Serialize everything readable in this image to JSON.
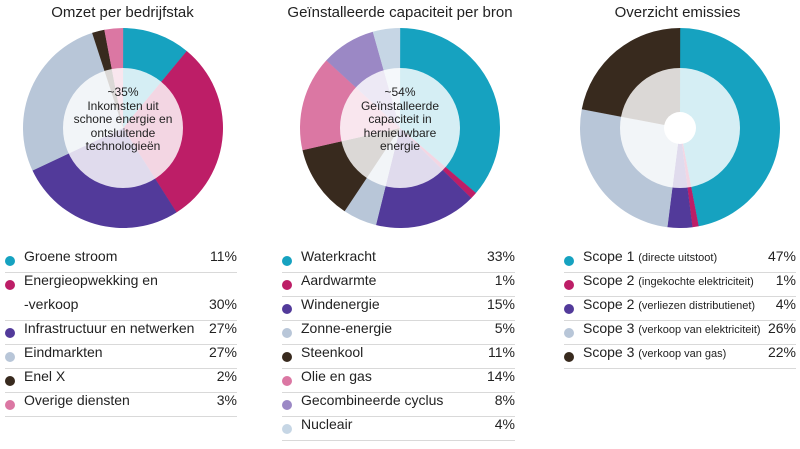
{
  "colors": {
    "teal": "#16a2c0",
    "magenta": "#bd1e67",
    "purple": "#523a9a",
    "lightblue": "#b8c6d8",
    "darkbrown": "#382a1e",
    "pink": "#db77a3",
    "lavender": "#9b88c5",
    "paleblue": "#c6d6e5"
  },
  "chart_data": [
    {
      "type": "pie",
      "variant": "donut",
      "title": "Omzet per bedrijfstak",
      "center_label": [
        "~35%",
        "Inkomsten uit",
        "schone energie en",
        "ontsluitende",
        "technologieën"
      ],
      "slices": [
        {
          "label": "Groene stroom",
          "value": 11,
          "display": "11%",
          "color": "#16a2c0"
        },
        {
          "label": "Energieopwekking en -verkoop",
          "label_lines": [
            "Energieopwekking en",
            "-verkoop"
          ],
          "value": 30,
          "display": "30%",
          "color": "#bd1e67"
        },
        {
          "label": "Infrastructuur en netwerken",
          "value": 27,
          "display": "27%",
          "color": "#523a9a"
        },
        {
          "label": "Eindmarkten",
          "value": 27,
          "display": "27%",
          "color": "#b8c6d8"
        },
        {
          "label": "Enel X",
          "value": 2,
          "display": "2%",
          "color": "#382a1e"
        },
        {
          "label": "Overige diensten",
          "value": 3,
          "display": "3%",
          "color": "#db77a3"
        }
      ]
    },
    {
      "type": "pie",
      "variant": "donut",
      "title": "Geïnstalleerde capaciteit per bron",
      "center_label": [
        "~54%",
        "Geïnstalleerde",
        "capaciteit in",
        "hernieuwbare",
        "energie"
      ],
      "slices": [
        {
          "label": "Waterkracht",
          "value": 33,
          "display": "33%",
          "color": "#16a2c0"
        },
        {
          "label": "Aardwarmte",
          "value": 1,
          "display": "1%",
          "color": "#bd1e67"
        },
        {
          "label": "Windenergie",
          "value": 15,
          "display": "15%",
          "color": "#523a9a"
        },
        {
          "label": "Zonne-energie",
          "value": 5,
          "display": "5%",
          "color": "#b8c6d8"
        },
        {
          "label": "Steenkool",
          "value": 11,
          "display": "11%",
          "color": "#382a1e"
        },
        {
          "label": "Olie en gas",
          "value": 14,
          "display": "14%",
          "color": "#db77a3"
        },
        {
          "label": "Gecombineerde cyclus",
          "value": 8,
          "display": "8%",
          "color": "#9b88c5"
        },
        {
          "label": "Nucleair",
          "value": 4,
          "display": "4%",
          "color": "#c6d6e5"
        }
      ]
    },
    {
      "type": "pie",
      "variant": "donut",
      "title": "Overzicht emissies",
      "center_label": [],
      "slices": [
        {
          "label": "Scope 1",
          "detail": "(directe uitstoot)",
          "value": 47,
          "display": "47%",
          "color": "#16a2c0"
        },
        {
          "label": "Scope 2",
          "detail": "(ingekochte elektriciteit)",
          "value": 1,
          "display": "1%",
          "color": "#bd1e67"
        },
        {
          "label": "Scope 2",
          "detail": "(verliezen distributienet)",
          "value": 4,
          "display": "4%",
          "color": "#523a9a"
        },
        {
          "label": "Scope 3",
          "detail": "(verkoop van elektriciteit)",
          "value": 26,
          "display": "26%",
          "color": "#b8c6d8"
        },
        {
          "label": "Scope 3",
          "detail": "(verkoop van gas)",
          "value": 22,
          "display": "22%",
          "color": "#382a1e"
        }
      ]
    }
  ]
}
